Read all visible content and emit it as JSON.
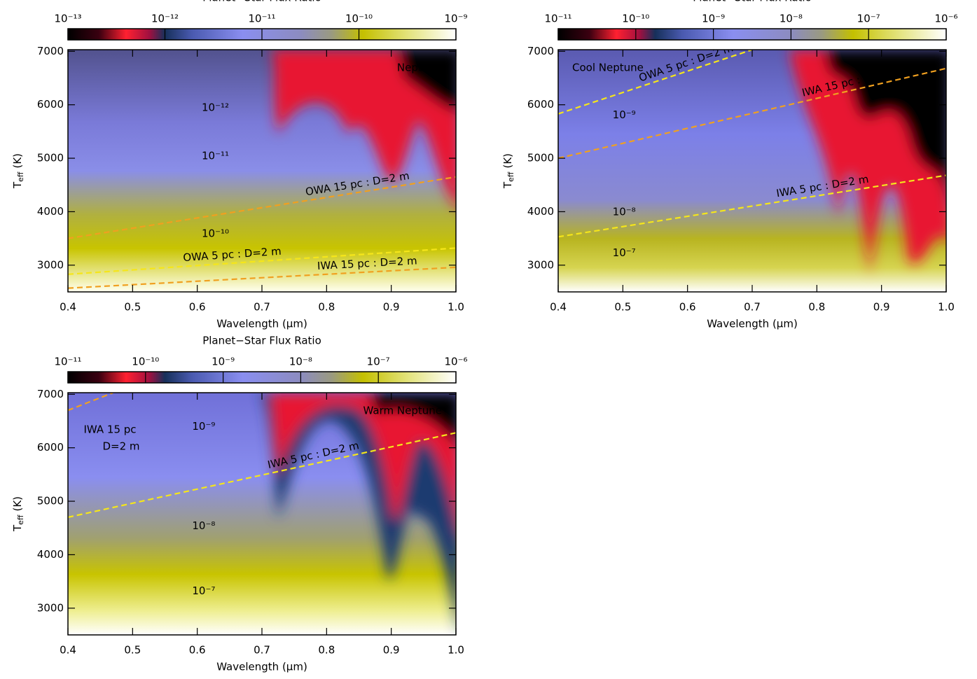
{
  "chart_data": [
    {
      "type": "heatmap",
      "title": "Planet−Star Flux Ratio",
      "label": "Neptune",
      "colorbar": {
        "lim": [
          1e-13,
          1e-09
        ],
        "log": true,
        "ticks": [
          {
            "value": 1e-13,
            "label": "10⁻¹³"
          },
          {
            "value": 1e-12,
            "label": "10⁻¹²"
          },
          {
            "value": 1e-11,
            "label": "10⁻¹¹"
          },
          {
            "value": 1e-10,
            "label": "10⁻¹⁰"
          },
          {
            "value": 1e-09,
            "label": "10⁻⁹"
          }
        ]
      },
      "xlabel": "Wavelength (μm)",
      "ylabel": {
        "main": "T",
        "sub": "eff",
        "unit": "(K)"
      },
      "xlim": [
        0.4,
        1.0
      ],
      "xticks": [
        0.4,
        0.5,
        0.6,
        0.7,
        0.8,
        0.9,
        {
          "value": 1.0,
          "label": "1.0"
        }
      ],
      "ylim": [
        2500,
        7030
      ],
      "yticks": [
        3000,
        4000,
        5000,
        6000,
        7000
      ],
      "contour_labels": [
        "10⁻¹²",
        "10⁻¹¹",
        "10⁻¹⁰"
      ],
      "series": [
        {
          "label": [
            "OWA 15 pc : D=2 m"
          ],
          "color": "#f0a020",
          "x": [
            0.4,
            1.0
          ],
          "values": [
            3500,
            4650
          ]
        },
        {
          "label": [
            "OWA 5 pc : D=2 m"
          ],
          "color": "#f5e61a",
          "x": [
            0.4,
            1.0
          ],
          "values": [
            2830,
            3320
          ]
        },
        {
          "label": [
            "IWA 15 pc : D=2 m"
          ],
          "color": "#f0a020",
          "x": [
            0.4,
            1.0
          ],
          "values": [
            2570,
            2960
          ]
        }
      ]
    },
    {
      "type": "heatmap",
      "title": "Planet−Star Flux Ratio",
      "label": "Cool Neptune",
      "colorbar": {
        "lim": [
          1e-11,
          1e-06
        ],
        "log": true,
        "ticks": [
          {
            "value": 1e-11,
            "label": "10⁻¹¹"
          },
          {
            "value": 1e-10,
            "label": "10⁻¹⁰"
          },
          {
            "value": 1e-09,
            "label": "10⁻⁹"
          },
          {
            "value": 1e-08,
            "label": "10⁻⁸"
          },
          {
            "value": 1e-07,
            "label": "10⁻⁷"
          },
          {
            "value": 1e-06,
            "label": "10⁻⁶"
          }
        ]
      },
      "xlabel": "Wavelength (μm)",
      "ylabel": {
        "main": "T",
        "sub": "eff",
        "unit": "(K)"
      },
      "xlim": [
        0.4,
        1.0
      ],
      "xticks": [
        0.4,
        0.5,
        0.6,
        0.7,
        0.8,
        0.9,
        {
          "value": 1.0,
          "label": "1.0"
        }
      ],
      "ylim": [
        2500,
        7030
      ],
      "yticks": [
        3000,
        4000,
        5000,
        6000,
        7000
      ],
      "contour_labels": [
        "10⁻⁹",
        "10⁻⁸",
        "10⁻⁷"
      ],
      "series": [
        {
          "label": [
            "OWA 5 pc : D=2 m"
          ],
          "color": "#f5e61a",
          "x": [
            0.4,
            0.7
          ],
          "values": [
            5830,
            7030
          ]
        },
        {
          "label": [
            "IWA 15 pc : D=2 m"
          ],
          "color": "#f0a020",
          "x": [
            0.4,
            1.0
          ],
          "values": [
            5000,
            6680
          ]
        },
        {
          "label": [
            "IWA 5 pc : D=2 m"
          ],
          "color": "#f5e61a",
          "x": [
            0.4,
            1.0
          ],
          "values": [
            3530,
            4680
          ]
        }
      ]
    },
    {
      "type": "heatmap",
      "title": "Planet−Star Flux Ratio",
      "label": "Warm Neptune",
      "colorbar": {
        "lim": [
          1e-11,
          1e-06
        ],
        "log": true,
        "ticks": [
          {
            "value": 1e-11,
            "label": "10⁻¹¹"
          },
          {
            "value": 1e-10,
            "label": "10⁻¹⁰"
          },
          {
            "value": 1e-09,
            "label": "10⁻⁹"
          },
          {
            "value": 1e-08,
            "label": "10⁻⁸"
          },
          {
            "value": 1e-07,
            "label": "10⁻⁷"
          },
          {
            "value": 1e-06,
            "label": "10⁻⁶"
          }
        ]
      },
      "xlabel": "Wavelength (μm)",
      "ylabel": {
        "main": "T",
        "sub": "eff",
        "unit": "(K)"
      },
      "xlim": [
        0.4,
        1.0
      ],
      "xticks": [
        0.4,
        0.5,
        0.6,
        0.7,
        0.8,
        0.9,
        {
          "value": 1.0,
          "label": "1.0"
        }
      ],
      "ylim": [
        2500,
        7030
      ],
      "yticks": [
        3000,
        4000,
        5000,
        6000,
        7000
      ],
      "contour_labels": [
        "10⁻⁹",
        "10⁻⁸",
        "10⁻⁷"
      ],
      "series": [
        {
          "label": [
            "IWA 15 pc",
            "D=2 m"
          ],
          "color": "#f0a020",
          "x": [
            0.4,
            0.47
          ],
          "values": [
            6700,
            7030
          ]
        },
        {
          "label": [
            "IWA 5 pc : D=2 m"
          ],
          "color": "#f5e61a",
          "x": [
            0.4,
            1.0
          ],
          "values": [
            4700,
            6280
          ]
        }
      ]
    }
  ]
}
